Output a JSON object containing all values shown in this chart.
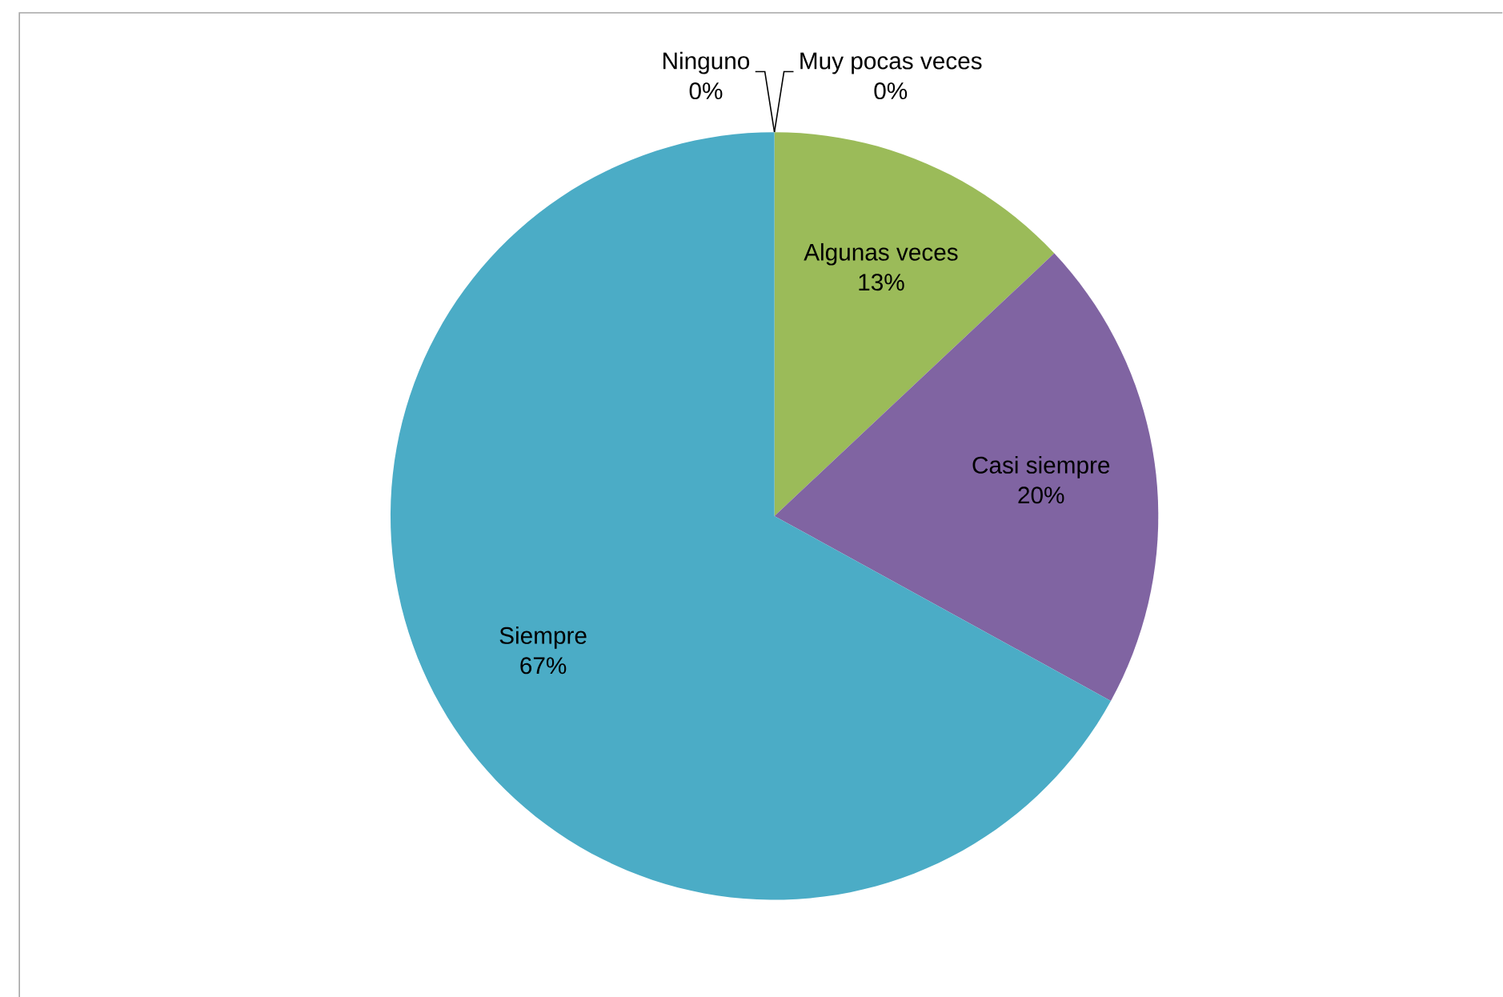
{
  "chart_data": {
    "type": "pie",
    "categories": [
      "Ninguno",
      "Muy pocas veces",
      "Algunas veces",
      "Casi siempre",
      "Siempre"
    ],
    "values": [
      0,
      0,
      13,
      20,
      67
    ],
    "colors": [
      "#4f81bd",
      "#c0504d",
      "#9bbb59",
      "#8064a2",
      "#4bacc6"
    ],
    "value_labels": [
      "0%",
      "0%",
      "13%",
      "20%",
      "67%"
    ]
  }
}
